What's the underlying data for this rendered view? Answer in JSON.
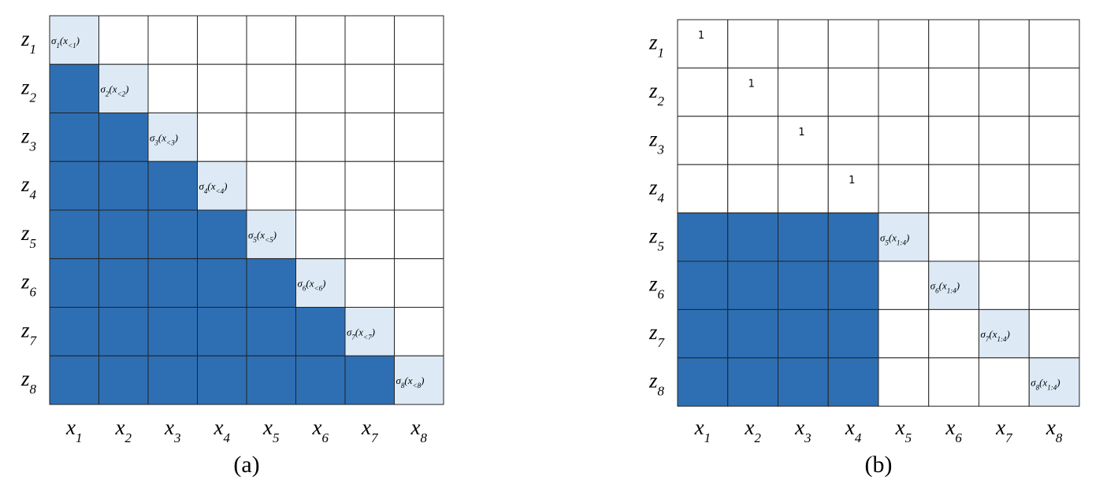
{
  "panels": [
    {
      "caption": "(a)",
      "row_labels": [
        [
          "z",
          "1"
        ],
        [
          "z",
          "2"
        ],
        [
          "z",
          "3"
        ],
        [
          "z",
          "4"
        ],
        [
          "z",
          "5"
        ],
        [
          "z",
          "6"
        ],
        [
          "z",
          "7"
        ],
        [
          "z",
          "8"
        ]
      ],
      "col_labels": [
        [
          "x",
          "1"
        ],
        [
          "x",
          "2"
        ],
        [
          "x",
          "3"
        ],
        [
          "x",
          "4"
        ],
        [
          "x",
          "5"
        ],
        [
          "x",
          "6"
        ],
        [
          "x",
          "7"
        ],
        [
          "x",
          "8"
        ]
      ],
      "diagonal": [
        [
          "σ",
          "1",
          "(x",
          "<1",
          ")"
        ],
        [
          "σ",
          "2",
          "(x",
          "<2",
          ")"
        ],
        [
          "σ",
          "3",
          "(x",
          "<3",
          ")"
        ],
        [
          "σ",
          "4",
          "(x",
          "<4",
          ")"
        ],
        [
          "σ",
          "5",
          "(x",
          "<5",
          ")"
        ],
        [
          "σ",
          "6",
          "(x",
          "<6",
          ")"
        ],
        [
          "σ",
          "7",
          "(x",
          "<7",
          ")"
        ],
        [
          "σ",
          "8",
          "(x",
          "<8",
          ")"
        ]
      ]
    },
    {
      "caption": "(b)",
      "row_labels": [
        [
          "z",
          "1"
        ],
        [
          "z",
          "2"
        ],
        [
          "z",
          "3"
        ],
        [
          "z",
          "4"
        ],
        [
          "z",
          "5"
        ],
        [
          "z",
          "6"
        ],
        [
          "z",
          "7"
        ],
        [
          "z",
          "8"
        ]
      ],
      "col_labels": [
        [
          "x",
          "1"
        ],
        [
          "x",
          "2"
        ],
        [
          "x",
          "3"
        ],
        [
          "x",
          "4"
        ],
        [
          "x",
          "5"
        ],
        [
          "x",
          "6"
        ],
        [
          "x",
          "7"
        ],
        [
          "x",
          "8"
        ]
      ],
      "diagonal": [
        [
          "1"
        ],
        [
          "1"
        ],
        [
          "1"
        ],
        [
          "1"
        ],
        [
          "σ",
          "5",
          "(x",
          "1:4",
          ")"
        ],
        [
          "σ",
          "6",
          "(x",
          "1:4",
          ")"
        ],
        [
          "σ",
          "7",
          "(x",
          "1:4",
          ")"
        ],
        [
          "σ",
          "8",
          "(x",
          "1:4",
          ")"
        ]
      ]
    }
  ]
}
